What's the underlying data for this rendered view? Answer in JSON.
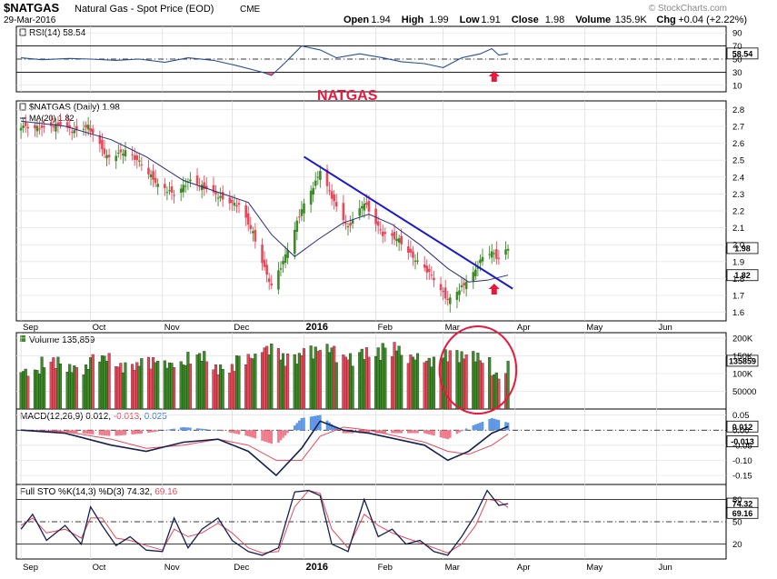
{
  "header": {
    "symbol": "$NATGAS",
    "name": "Natural Gas - Spot Price (EOD)",
    "exchange": "CME",
    "date": "29-Mar-2016",
    "watermark": "© StockCharts.com",
    "quote": [
      {
        "label": "Open",
        "value": "1.94"
      },
      {
        "label": "High",
        "value": "1.99"
      },
      {
        "label": "Low",
        "value": "1.91"
      },
      {
        "label": "Close",
        "value": "1.98"
      },
      {
        "label": "Volume",
        "value": "135.9K"
      },
      {
        "label": "Chg",
        "value": "+0.04 (+2.22%)"
      }
    ]
  },
  "annotations": {
    "title_text": "NATGAS",
    "trendline": {
      "from": {
        "date": "2016-01-01",
        "price": 2.52
      },
      "to": {
        "date": "2016-03-31",
        "price": 1.74
      }
    },
    "rsi_arrow_date": "2016-03-23",
    "price_arrow_date": "2016-03-23",
    "volume_circle_dates": [
      "2016-03-01",
      "2016-03-31"
    ]
  },
  "colors": {
    "up": "#3c8a28",
    "down": "#e8485a",
    "annotation": "#e8193c",
    "trendline": "#1a1acc",
    "ma": "#2a2f7a",
    "histogram_up": "#5e97e6",
    "histogram_down": "#ef7b8c",
    "macd_line": "#14214f",
    "signal_line": "#e8485a",
    "panel_line": "#000000"
  },
  "chart_data": [
    {
      "id": "rsi",
      "type": "line",
      "title": "RSI(14)",
      "last": "58.54",
      "ylim": [
        0,
        100
      ],
      "ticks": [
        "90",
        "70",
        "50",
        "30",
        "10"
      ],
      "last_tag": "58.54",
      "levels": [
        30,
        50,
        70
      ],
      "points": [
        [
          "2015-09-01",
          52
        ],
        [
          "2015-09-10",
          49
        ],
        [
          "2015-09-22",
          51
        ],
        [
          "2015-10-01",
          50
        ],
        [
          "2015-10-12",
          48
        ],
        [
          "2015-10-22",
          50
        ],
        [
          "2015-11-02",
          45
        ],
        [
          "2015-11-12",
          52
        ],
        [
          "2015-11-23",
          48
        ],
        [
          "2015-12-03",
          40
        ],
        [
          "2015-12-14",
          30
        ],
        [
          "2015-12-18",
          25
        ],
        [
          "2015-12-24",
          45
        ],
        [
          "2015-12-31",
          70
        ],
        [
          "2016-01-08",
          64
        ],
        [
          "2016-01-15",
          52
        ],
        [
          "2016-01-25",
          58
        ],
        [
          "2016-02-04",
          52
        ],
        [
          "2016-02-12",
          46
        ],
        [
          "2016-02-22",
          43
        ],
        [
          "2016-03-01",
          37
        ],
        [
          "2016-03-09",
          52
        ],
        [
          "2016-03-17",
          58
        ],
        [
          "2016-03-22",
          66
        ],
        [
          "2016-03-25",
          56
        ],
        [
          "2016-03-29",
          58.54
        ]
      ]
    },
    {
      "id": "price",
      "type": "candlestick",
      "title": "$NATGAS (Daily)",
      "last": "1.98",
      "ma_label": "MA(20)",
      "ma_last": "1.82",
      "ylim": [
        1.55,
        2.85
      ],
      "ticks": [
        "2.8",
        "2.7",
        "2.6",
        "2.5",
        "2.4",
        "2.3",
        "2.2",
        "2.1",
        "2.0",
        "1.9",
        "1.8",
        "1.7",
        "1.6"
      ],
      "price_tags": [
        "1.98",
        "1.82"
      ],
      "closes": [
        [
          "2015-09-01",
          2.7
        ],
        [
          "2015-09-10",
          2.69
        ],
        [
          "2015-09-18",
          2.71
        ],
        [
          "2015-09-24",
          2.67
        ],
        [
          "2015-09-30",
          2.7
        ],
        [
          "2015-10-08",
          2.52
        ],
        [
          "2015-10-16",
          2.55
        ],
        [
          "2015-10-23",
          2.48
        ],
        [
          "2015-10-30",
          2.35
        ],
        [
          "2015-11-06",
          2.3
        ],
        [
          "2015-11-13",
          2.38
        ],
        [
          "2015-11-20",
          2.33
        ],
        [
          "2015-11-27",
          2.27
        ],
        [
          "2015-12-04",
          2.23
        ],
        [
          "2015-12-10",
          2.07
        ],
        [
          "2015-12-15",
          1.86
        ],
        [
          "2015-12-18",
          1.75
        ],
        [
          "2015-12-23",
          1.9
        ],
        [
          "2015-12-31",
          2.21
        ],
        [
          "2016-01-06",
          2.37
        ],
        [
          "2016-01-08",
          2.44
        ],
        [
          "2016-01-14",
          2.25
        ],
        [
          "2016-01-20",
          2.1
        ],
        [
          "2016-01-27",
          2.25
        ],
        [
          "2016-02-04",
          2.06
        ],
        [
          "2016-02-11",
          2.03
        ],
        [
          "2016-02-18",
          1.91
        ],
        [
          "2016-02-25",
          1.82
        ],
        [
          "2016-03-03",
          1.67
        ],
        [
          "2016-03-09",
          1.75
        ],
        [
          "2016-03-15",
          1.85
        ],
        [
          "2016-03-18",
          1.93
        ],
        [
          "2016-03-22",
          1.96
        ],
        [
          "2016-03-25",
          1.91
        ],
        [
          "2016-03-29",
          1.98
        ]
      ],
      "ma20": [
        [
          "2015-09-01",
          2.73
        ],
        [
          "2015-09-20",
          2.7
        ],
        [
          "2015-10-10",
          2.62
        ],
        [
          "2015-10-25",
          2.52
        ],
        [
          "2015-11-10",
          2.38
        ],
        [
          "2015-11-25",
          2.31
        ],
        [
          "2015-12-08",
          2.25
        ],
        [
          "2015-12-18",
          2.06
        ],
        [
          "2015-12-28",
          1.93
        ],
        [
          "2016-01-07",
          2.03
        ],
        [
          "2016-01-18",
          2.13
        ],
        [
          "2016-01-29",
          2.18
        ],
        [
          "2016-02-08",
          2.12
        ],
        [
          "2016-02-20",
          2.0
        ],
        [
          "2016-03-03",
          1.86
        ],
        [
          "2016-03-12",
          1.78
        ],
        [
          "2016-03-20",
          1.79
        ],
        [
          "2016-03-29",
          1.82
        ]
      ]
    },
    {
      "id": "volume",
      "type": "bar",
      "title": "Volume",
      "last": "135,859",
      "ylim": [
        0,
        215000
      ],
      "ticks": [
        "200K",
        "150K",
        "100K",
        "50000"
      ],
      "last_tag": "135859",
      "bars": [
        [
          "2015-09-01",
          110000,
          "up"
        ],
        [
          "2015-09-10",
          140000,
          "down"
        ],
        [
          "2015-09-20",
          120000,
          "up"
        ],
        [
          "2015-10-01",
          150000,
          "up"
        ],
        [
          "2015-10-12",
          125000,
          "down"
        ],
        [
          "2015-10-22",
          140000,
          "down"
        ],
        [
          "2015-11-02",
          130000,
          "up"
        ],
        [
          "2015-11-12",
          155000,
          "up"
        ],
        [
          "2015-11-23",
          120000,
          "down"
        ],
        [
          "2015-12-03",
          150000,
          "down"
        ],
        [
          "2015-12-14",
          175000,
          "down"
        ],
        [
          "2015-12-22",
          150000,
          "up"
        ],
        [
          "2015-12-31",
          170000,
          "up"
        ],
        [
          "2016-01-08",
          175000,
          "up"
        ],
        [
          "2016-01-15",
          150000,
          "down"
        ],
        [
          "2016-01-25",
          165000,
          "up"
        ],
        [
          "2016-02-04",
          180000,
          "down"
        ],
        [
          "2016-02-12",
          150000,
          "down"
        ],
        [
          "2016-02-22",
          140000,
          "down"
        ],
        [
          "2016-03-01",
          160000,
          "up"
        ],
        [
          "2016-03-09",
          155000,
          "up"
        ],
        [
          "2016-03-17",
          140000,
          "up"
        ],
        [
          "2016-03-22",
          100000,
          "down"
        ],
        [
          "2016-03-29",
          135859,
          "up"
        ]
      ]
    },
    {
      "id": "macd",
      "type": "line",
      "title": "MACD(12,26,9)",
      "values_label": [
        "0.012",
        "-0.013",
        "0.025"
      ],
      "ylim": [
        -0.18,
        0.07
      ],
      "ticks": [
        "0.05",
        "0.00",
        "-0.05",
        "-0.10",
        "-0.15"
      ],
      "tags": [
        "0.012",
        "-0.013"
      ],
      "macd": [
        [
          "2015-09-01",
          0.0
        ],
        [
          "2015-09-20",
          -0.01
        ],
        [
          "2015-10-10",
          -0.05
        ],
        [
          "2015-10-25",
          -0.07
        ],
        [
          "2015-11-10",
          -0.04
        ],
        [
          "2015-11-25",
          -0.03
        ],
        [
          "2015-12-08",
          -0.07
        ],
        [
          "2015-12-20",
          -0.15
        ],
        [
          "2015-12-31",
          -0.06
        ],
        [
          "2016-01-08",
          0.03
        ],
        [
          "2016-01-18",
          0.0
        ],
        [
          "2016-01-29",
          -0.01
        ],
        [
          "2016-02-10",
          -0.03
        ],
        [
          "2016-02-22",
          -0.05
        ],
        [
          "2016-03-03",
          -0.1
        ],
        [
          "2016-03-12",
          -0.07
        ],
        [
          "2016-03-22",
          -0.01
        ],
        [
          "2016-03-29",
          0.012
        ]
      ],
      "signal": [
        [
          "2015-09-01",
          0.0
        ],
        [
          "2015-09-20",
          -0.005
        ],
        [
          "2015-10-10",
          -0.03
        ],
        [
          "2015-10-25",
          -0.06
        ],
        [
          "2015-11-10",
          -0.05
        ],
        [
          "2015-11-25",
          -0.03
        ],
        [
          "2015-12-08",
          -0.05
        ],
        [
          "2015-12-20",
          -0.1
        ],
        [
          "2015-12-31",
          -0.1
        ],
        [
          "2016-01-08",
          -0.02
        ],
        [
          "2016-01-18",
          0.01
        ],
        [
          "2016-01-29",
          0.0
        ],
        [
          "2016-02-10",
          -0.02
        ],
        [
          "2016-02-22",
          -0.04
        ],
        [
          "2016-03-03",
          -0.07
        ],
        [
          "2016-03-12",
          -0.08
        ],
        [
          "2016-03-22",
          -0.05
        ],
        [
          "2016-03-29",
          -0.013
        ]
      ]
    },
    {
      "id": "sto",
      "type": "line",
      "title": "Full STO %K(14,3) %D(3)",
      "values_label": [
        "74.32",
        "69.16"
      ],
      "ylim": [
        0,
        100
      ],
      "ticks": [
        "80",
        "50",
        "20"
      ],
      "tags": [
        "74.32",
        "69.16"
      ],
      "levels": [
        20,
        50,
        80
      ],
      "k": [
        [
          "2015-09-01",
          40
        ],
        [
          "2015-09-06",
          60
        ],
        [
          "2015-09-12",
          25
        ],
        [
          "2015-09-20",
          45
        ],
        [
          "2015-09-27",
          20
        ],
        [
          "2015-10-01",
          70
        ],
        [
          "2015-10-06",
          45
        ],
        [
          "2015-10-12",
          18
        ],
        [
          "2015-10-18",
          30
        ],
        [
          "2015-10-25",
          12
        ],
        [
          "2015-11-01",
          10
        ],
        [
          "2015-11-06",
          55
        ],
        [
          "2015-11-12",
          15
        ],
        [
          "2015-11-18",
          40
        ],
        [
          "2015-11-25",
          55
        ],
        [
          "2015-12-01",
          25
        ],
        [
          "2015-12-08",
          10
        ],
        [
          "2015-12-14",
          5
        ],
        [
          "2015-12-21",
          15
        ],
        [
          "2015-12-28",
          90
        ],
        [
          "2016-01-03",
          92
        ],
        [
          "2016-01-08",
          85
        ],
        [
          "2016-01-13",
          20
        ],
        [
          "2016-01-20",
          10
        ],
        [
          "2016-01-27",
          80
        ],
        [
          "2016-02-02",
          30
        ],
        [
          "2016-02-08",
          40
        ],
        [
          "2016-02-14",
          20
        ],
        [
          "2016-02-20",
          25
        ],
        [
          "2016-02-26",
          10
        ],
        [
          "2016-03-03",
          5
        ],
        [
          "2016-03-09",
          30
        ],
        [
          "2016-03-15",
          60
        ],
        [
          "2016-03-20",
          92
        ],
        [
          "2016-03-25",
          72
        ],
        [
          "2016-03-29",
          74.32
        ]
      ],
      "d": [
        [
          "2015-09-01",
          45
        ],
        [
          "2015-09-06",
          55
        ],
        [
          "2015-09-12",
          35
        ],
        [
          "2015-09-20",
          40
        ],
        [
          "2015-09-27",
          28
        ],
        [
          "2015-10-01",
          55
        ],
        [
          "2015-10-06",
          55
        ],
        [
          "2015-10-12",
          28
        ],
        [
          "2015-10-18",
          25
        ],
        [
          "2015-10-25",
          18
        ],
        [
          "2015-11-01",
          12
        ],
        [
          "2015-11-06",
          40
        ],
        [
          "2015-11-12",
          30
        ],
        [
          "2015-11-18",
          35
        ],
        [
          "2015-11-25",
          48
        ],
        [
          "2015-12-01",
          35
        ],
        [
          "2015-12-08",
          15
        ],
        [
          "2015-12-14",
          8
        ],
        [
          "2015-12-21",
          10
        ],
        [
          "2015-12-28",
          70
        ],
        [
          "2016-01-03",
          92
        ],
        [
          "2016-01-08",
          88
        ],
        [
          "2016-01-13",
          40
        ],
        [
          "2016-01-20",
          15
        ],
        [
          "2016-01-27",
          60
        ],
        [
          "2016-02-02",
          45
        ],
        [
          "2016-02-08",
          35
        ],
        [
          "2016-02-14",
          28
        ],
        [
          "2016-02-20",
          22
        ],
        [
          "2016-02-26",
          15
        ],
        [
          "2016-03-03",
          8
        ],
        [
          "2016-03-09",
          20
        ],
        [
          "2016-03-15",
          45
        ],
        [
          "2016-03-20",
          80
        ],
        [
          "2016-03-25",
          78
        ],
        [
          "2016-03-29",
          69.16
        ]
      ]
    }
  ],
  "x_axis": {
    "range": [
      "2015-08-30",
      "2016-07-01"
    ],
    "labels": [
      {
        "date": "2015-09-01",
        "text": "Sep",
        "bold": false
      },
      {
        "date": "2015-10-01",
        "text": "Oct",
        "bold": false
      },
      {
        "date": "2015-11-01",
        "text": "Nov",
        "bold": false
      },
      {
        "date": "2015-12-01",
        "text": "Dec",
        "bold": false
      },
      {
        "date": "2016-01-01",
        "text": "2016",
        "bold": true
      },
      {
        "date": "2016-02-01",
        "text": "Feb",
        "bold": false
      },
      {
        "date": "2016-03-01",
        "text": "Mar",
        "bold": false
      },
      {
        "date": "2016-04-01",
        "text": "Apr",
        "bold": false
      },
      {
        "date": "2016-05-01",
        "text": "May",
        "bold": false
      },
      {
        "date": "2016-06-01",
        "text": "Jun",
        "bold": false
      }
    ]
  }
}
